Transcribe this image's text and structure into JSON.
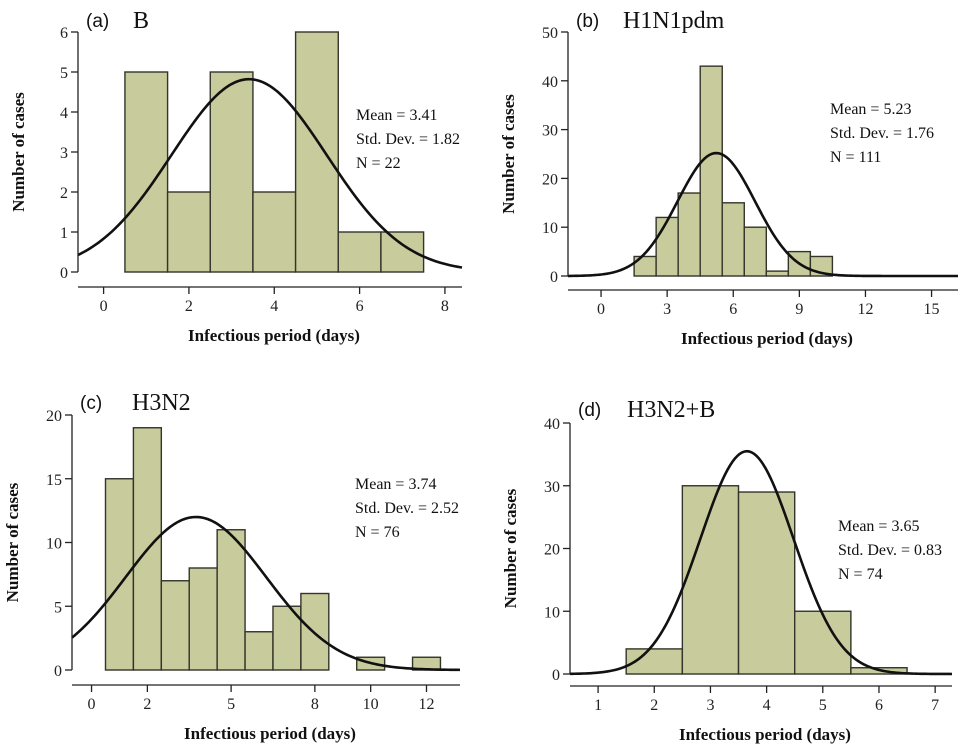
{
  "colors": {
    "bar_fill": "#c8cc9c",
    "bar_edge": "#33342a",
    "curve": "#111111",
    "axis": "#222222"
  },
  "chart_data": [
    {
      "type": "bar",
      "panel_label": "(a)",
      "title": "B",
      "xlabel": "Infectious period (days)",
      "ylabel": "Number of cases",
      "xlim": [
        -0.6,
        8.4
      ],
      "ylim": [
        0,
        6
      ],
      "xticks": [
        0,
        2,
        4,
        6,
        8
      ],
      "yticks": [
        0,
        1,
        2,
        3,
        4,
        5,
        6
      ],
      "bin_width": 1,
      "bins": [
        1,
        2,
        3,
        4,
        5,
        6,
        7
      ],
      "values": [
        5,
        2,
        5,
        2,
        6,
        1,
        1
      ],
      "curve": {
        "mean": 3.41,
        "sd": 1.82,
        "n": 22,
        "peak": 4.82
      },
      "stats": [
        "Mean = 3.41",
        "Std. Dev. = 1.82",
        "N = 22"
      ],
      "legend": "right"
    },
    {
      "type": "bar",
      "panel_label": "(b)",
      "title": "H1N1pdm",
      "xlabel": "Infectious period (days)",
      "ylabel": "Number of cases",
      "xlim": [
        -1.5,
        16.2
      ],
      "ylim": [
        0,
        50
      ],
      "xticks": [
        0,
        3,
        6,
        9,
        12,
        15
      ],
      "yticks": [
        0,
        10,
        20,
        30,
        40,
        50
      ],
      "bin_width": 1,
      "bins": [
        2,
        3,
        4,
        5,
        6,
        7,
        8,
        9,
        10
      ],
      "values": [
        4,
        12,
        17,
        43,
        15,
        10,
        1,
        5,
        4
      ],
      "curve": {
        "mean": 5.23,
        "sd": 1.76,
        "n": 111,
        "peak": 25.2
      },
      "stats": [
        "Mean = 5.23",
        "Std. Dev. = 1.76",
        "N = 111"
      ],
      "legend": "right"
    },
    {
      "type": "bar",
      "panel_label": "(c)",
      "title": "H3N2",
      "xlabel": "Infectious period (days)",
      "ylabel": "Number of cases",
      "xlim": [
        -0.7,
        13.2
      ],
      "ylim": [
        0,
        20
      ],
      "xticks": [
        0,
        2,
        5,
        8,
        10,
        12
      ],
      "yticks": [
        0,
        5,
        10,
        15,
        20
      ],
      "bin_width": 1,
      "bins": [
        1,
        2,
        3,
        4,
        5,
        6,
        7,
        8,
        9,
        10,
        11,
        12
      ],
      "values": [
        15,
        19,
        7,
        8,
        11,
        3,
        5,
        6,
        0,
        1,
        0,
        1
      ],
      "curve": {
        "mean": 3.74,
        "sd": 2.52,
        "n": 76,
        "peak": 12.0
      },
      "stats": [
        "Mean = 3.74",
        "Std. Dev. = 2.52",
        "N = 76"
      ],
      "legend": "right"
    },
    {
      "type": "bar",
      "panel_label": "(d)",
      "title": "H3N2+B",
      "xlabel": "Infectious period (days)",
      "ylabel": "Number of cases",
      "xlim": [
        0.5,
        7.3
      ],
      "ylim": [
        0,
        40
      ],
      "xticks": [
        1,
        2,
        3,
        4,
        5,
        6,
        7
      ],
      "yticks": [
        0,
        10,
        20,
        30,
        40
      ],
      "bin_width": 1,
      "bins": [
        2,
        3,
        4,
        5,
        6
      ],
      "values": [
        4,
        30,
        29,
        10,
        1
      ],
      "curve": {
        "mean": 3.65,
        "sd": 0.83,
        "n": 74,
        "peak": 35.5
      },
      "stats": [
        "Mean = 3.65",
        "Std. Dev. = 0.83",
        "N = 74"
      ],
      "legend": "right"
    }
  ]
}
